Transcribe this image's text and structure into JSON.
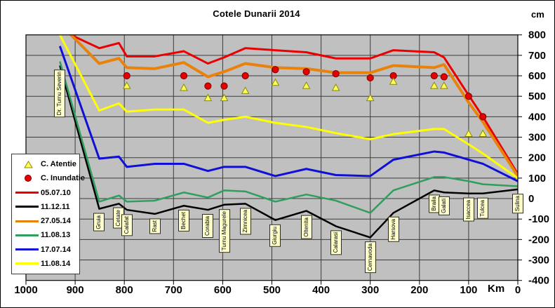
{
  "title": "Cotele Dunarii 2014",
  "colors": {
    "plot_background": "#c0c0c0",
    "gridline": "#3c3c3c",
    "axis": "#000000",
    "station_label_bg": "#ffffcc",
    "tick_label": "#000000"
  },
  "chart_data": {
    "type": "line",
    "title": "Cotele Dunarii 2014",
    "x_axis": {
      "label": "Km",
      "min": 0,
      "max": 1000,
      "direction": "reversed",
      "ticks": [
        1000,
        900,
        800,
        700,
        600,
        500,
        400,
        300,
        200,
        100,
        0
      ]
    },
    "y_axis": {
      "label": "cm",
      "min": -400,
      "max": 800,
      "ticks": [
        800,
        700,
        600,
        500,
        400,
        300,
        200,
        100,
        0,
        -100,
        -200,
        -300,
        -400
      ]
    },
    "grid": true,
    "legend_position": "left-overlap",
    "stations": [
      {
        "name": "Dr. Turnu Severin",
        "km": 931
      },
      {
        "name": "Gruia",
        "km": 851
      },
      {
        "name": "Cetate",
        "km": 811
      },
      {
        "name": "Calafat",
        "km": 795
      },
      {
        "name": "Rast",
        "km": 738
      },
      {
        "name": "Bechet",
        "km": 679
      },
      {
        "name": "Corabia",
        "km": 630
      },
      {
        "name": "Turnu Magurele",
        "km": 597
      },
      {
        "name": "Zimnicea",
        "km": 554
      },
      {
        "name": "Giurgiu",
        "km": 493
      },
      {
        "name": "Oltenita",
        "km": 430
      },
      {
        "name": "Calarasi",
        "km": 370
      },
      {
        "name": "Cernavoda",
        "km": 300
      },
      {
        "name": "Harsova",
        "km": 253
      },
      {
        "name": "Braila",
        "km": 170
      },
      {
        "name": "Galati",
        "km": 150
      },
      {
        "name": "Isaccea",
        "km": 100
      },
      {
        "name": "Tulcea",
        "km": 71
      },
      {
        "name": "Sulina",
        "km": 0
      }
    ],
    "series": [
      {
        "name": "05.07.10",
        "color": "#ea0000",
        "width": 3,
        "values": [
          825,
          735,
          760,
          695,
          695,
          720,
          660,
          690,
          735,
          725,
          715,
          685,
          685,
          725,
          715,
          690,
          505,
          400,
          120
        ]
      },
      {
        "name": "11.12.11",
        "color": "#000000",
        "width": 2.5,
        "values": [
          650,
          -50,
          -25,
          -55,
          -75,
          -35,
          -55,
          -30,
          -25,
          -105,
          -60,
          -135,
          -190,
          -70,
          40,
          30,
          25,
          25,
          45
        ]
      },
      {
        "name": "27.05.14",
        "color": "#e8820a",
        "width": 4,
        "values": [
          855,
          660,
          685,
          640,
          635,
          665,
          595,
          620,
          660,
          640,
          635,
          615,
          615,
          650,
          640,
          655,
          470,
          375,
          110
        ]
      },
      {
        "name": "11.08.13",
        "color": "#2f9e5f",
        "width": 2.5,
        "values": [
          670,
          -15,
          15,
          -15,
          -10,
          30,
          5,
          40,
          35,
          -15,
          20,
          -10,
          -70,
          40,
          105,
          105,
          85,
          70,
          60
        ]
      },
      {
        "name": "17.07.14",
        "color": "#0f0fd6",
        "width": 3,
        "values": [
          745,
          195,
          205,
          155,
          170,
          170,
          135,
          155,
          155,
          110,
          145,
          115,
          110,
          190,
          230,
          225,
          190,
          170,
          85
        ]
      },
      {
        "name": "11.08.14",
        "color": "#ffff00",
        "width": 3,
        "values": [
          800,
          430,
          465,
          425,
          435,
          435,
          370,
          385,
          400,
          370,
          350,
          320,
          290,
          315,
          340,
          340,
          265,
          220,
          100
        ]
      }
    ],
    "markers": {
      "attention": {
        "label": "C. Atentie",
        "symbol": "triangle",
        "fill": "#ffff55",
        "stroke": "#8b8b00",
        "points": [
          {
            "station": "Calafat",
            "value": 550
          },
          {
            "station": "Bechet",
            "value": 540
          },
          {
            "station": "Corabia",
            "value": 490
          },
          {
            "station": "Turnu Magurele",
            "value": 490
          },
          {
            "station": "Zimnicea",
            "value": 525
          },
          {
            "station": "Giurgiu",
            "value": 565
          },
          {
            "station": "Oltenita",
            "value": 550
          },
          {
            "station": "Calarasi",
            "value": 540
          },
          {
            "station": "Cernavoda",
            "value": 490
          },
          {
            "station": "Harsova",
            "value": 570
          },
          {
            "station": "Braila",
            "value": 550
          },
          {
            "station": "Galati",
            "value": 550
          },
          {
            "station": "Isaccea",
            "value": 315
          },
          {
            "station": "Tulcea",
            "value": 315
          }
        ]
      },
      "flood": {
        "label": "C. Inundatie",
        "symbol": "circle",
        "fill": "#e60000",
        "stroke": "#7a0000",
        "points": [
          {
            "station": "Calafat",
            "value": 600
          },
          {
            "station": "Bechet",
            "value": 600
          },
          {
            "station": "Corabia",
            "value": 550
          },
          {
            "station": "Turnu Magurele",
            "value": 550
          },
          {
            "station": "Zimnicea",
            "value": 600
          },
          {
            "station": "Giurgiu",
            "value": 630
          },
          {
            "station": "Oltenita",
            "value": 620
          },
          {
            "station": "Calarasi",
            "value": 610
          },
          {
            "station": "Cernavoda",
            "value": 590
          },
          {
            "station": "Harsova",
            "value": 600
          },
          {
            "station": "Braila",
            "value": 600
          },
          {
            "station": "Galati",
            "value": 595
          },
          {
            "station": "Isaccea",
            "value": 500
          },
          {
            "station": "Tulcea",
            "value": 400
          }
        ]
      }
    }
  }
}
